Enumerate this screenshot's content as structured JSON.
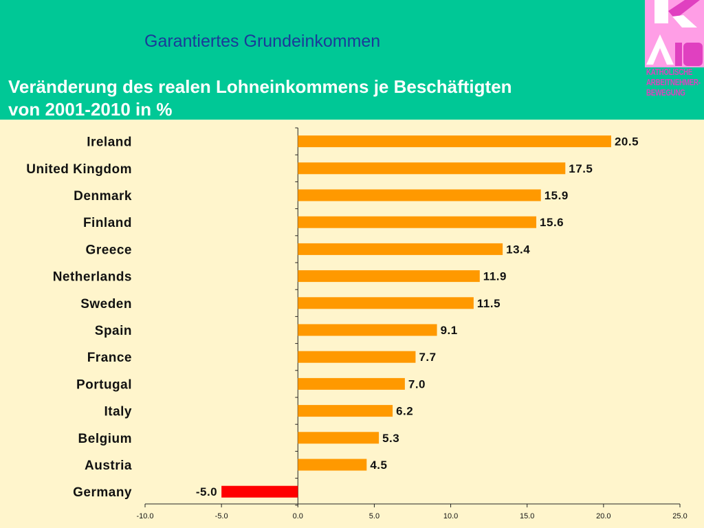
{
  "header": {
    "title": "Garantiertes Grundeinkommen",
    "subtitle_line1": "Veränderung des realen Lohneinkommens je Beschäftigten",
    "subtitle_line2": "von  2001-2010 in %"
  },
  "logo": {
    "line1": "KATHOLISCHE",
    "line2": "ARBEITNEHMER-",
    "line3": "BEWEGUNG",
    "colors": {
      "pink": "#e040c0",
      "light_pink": "#ff9ee6",
      "white": "#ffffff"
    }
  },
  "chart_data": {
    "type": "bar",
    "orientation": "horizontal",
    "categories": [
      "Ireland",
      "United Kingdom",
      "Denmark",
      "Finland",
      "Greece",
      "Netherlands",
      "Sweden",
      "Spain",
      "France",
      "Portugal",
      "Italy",
      "Belgium",
      "Austria",
      "Germany"
    ],
    "values": [
      20.5,
      17.5,
      15.9,
      15.6,
      13.4,
      11.9,
      11.5,
      9.1,
      7.7,
      7.0,
      6.2,
      5.3,
      4.5,
      -5.0
    ],
    "value_labels": [
      "20.5",
      "17.5",
      "15.9",
      "15.6",
      "13.4",
      "11.9",
      "11.5",
      "9.1",
      "7.7",
      "7.0",
      "6.2",
      "5.3",
      "4.5",
      "-5.0"
    ],
    "xlim": [
      -10,
      25
    ],
    "x_ticks": [
      "-10.0",
      "-5.0",
      "0.0",
      "5.0",
      "10.0",
      "15.0",
      "20.0",
      "25.0"
    ],
    "x_tick_values": [
      -10,
      -5,
      0,
      5,
      10,
      15,
      20,
      25
    ],
    "grid": false,
    "colors": {
      "positive": "#ff9900",
      "negative": "#ff0000",
      "axis": "#222222"
    }
  }
}
